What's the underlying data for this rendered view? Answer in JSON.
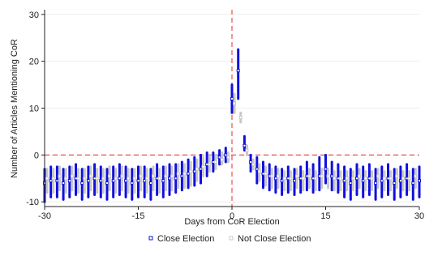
{
  "chart_data": {
    "type": "scatter",
    "xlabel": "Days from CoR Election",
    "ylabel": "Number of Articles Mentioning CoR",
    "xlim": [
      -30,
      30
    ],
    "ylim": [
      -11,
      31
    ],
    "x_ticks": [
      -30,
      -15,
      0,
      15,
      30
    ],
    "x_tick_labels": [
      "-30",
      "-15",
      "0",
      "15",
      "30"
    ],
    "y_ticks": [
      -10,
      0,
      10,
      20,
      30
    ],
    "y_tick_labels": [
      "-10",
      "0",
      "10",
      "20",
      "30"
    ],
    "reference_lines": [
      {
        "axis": "x",
        "value": 0,
        "style": "dashed",
        "color": "#e8504f"
      },
      {
        "axis": "y",
        "value": 0,
        "style": "dashed",
        "color": "#e8504f"
      }
    ],
    "grid": true,
    "legend_position": "bottom",
    "series": [
      {
        "name": "Close Election",
        "color": "#1010e0",
        "marker": "square-outline",
        "x": [
          -30,
          -29,
          -28,
          -27,
          -26,
          -25,
          -24,
          -23,
          -22,
          -21,
          -20,
          -19,
          -18,
          -17,
          -16,
          -15,
          -14,
          -13,
          -12,
          -11,
          -10,
          -9,
          -8,
          -7,
          -6,
          -5,
          -4,
          -3,
          -2,
          -1,
          0,
          1,
          2,
          3,
          4,
          5,
          6,
          7,
          8,
          9,
          10,
          11,
          12,
          13,
          14,
          15,
          16,
          17,
          18,
          19,
          20,
          21,
          22,
          23,
          24,
          25,
          26,
          27,
          28,
          29,
          30
        ],
        "y": [
          -6,
          -5.5,
          -5.5,
          -6,
          -5.5,
          -5,
          -6,
          -5.5,
          -5,
          -5.5,
          -6,
          -5.5,
          -5,
          -5.5,
          -6,
          -5.5,
          -5.5,
          -6,
          -5,
          -5.5,
          -5,
          -5,
          -4.5,
          -4,
          -3.5,
          -3,
          -2,
          -1.5,
          -0.5,
          0,
          12,
          18,
          2,
          -1.5,
          -3,
          -4,
          -4.5,
          -5,
          -5.5,
          -5,
          -5.5,
          -5,
          -4.5,
          -5,
          -4.5,
          -3,
          -4.5,
          -5,
          -5.5,
          -6,
          -5,
          -5.5,
          -5,
          -6,
          -5.5,
          -5,
          -6,
          -5.5,
          -5,
          -6,
          -5.5
        ],
        "low": [
          -10,
          -9,
          -9,
          -9.5,
          -9,
          -8.5,
          -9.5,
          -9,
          -8.5,
          -9,
          -9.5,
          -9,
          -8.5,
          -9,
          -9.5,
          -9,
          -9,
          -9.5,
          -8.5,
          -9,
          -8.5,
          -8,
          -7.5,
          -7,
          -6.5,
          -6,
          -4.5,
          -3.5,
          -2,
          -1.5,
          9,
          12,
          1,
          -3.5,
          -6,
          -7,
          -7.5,
          -8,
          -8.5,
          -8,
          -8.5,
          -8,
          -7.5,
          -8,
          -7.5,
          -6,
          -7.5,
          -8,
          -9,
          -9.5,
          -8.5,
          -9,
          -8.5,
          -9.5,
          -9,
          -8.5,
          -9.5,
          -9,
          -8.5,
          -9.5,
          -9
        ],
        "high": [
          -3,
          -2.5,
          -2.5,
          -3,
          -2.5,
          -2,
          -3,
          -2.5,
          -2,
          -2.5,
          -3,
          -2.5,
          -2,
          -2.5,
          -3,
          -2.5,
          -2.5,
          -3,
          -2,
          -2.5,
          -2,
          -2,
          -1.5,
          -1,
          -0.5,
          0,
          0.5,
          0.5,
          1,
          1.5,
          15,
          22.5,
          4,
          0,
          -0.5,
          -1.5,
          -2,
          -2.5,
          -3,
          -2.5,
          -3,
          -2.5,
          -1.5,
          -2,
          -0.5,
          0,
          -1.5,
          -2,
          -2.5,
          -3,
          -2,
          -2.5,
          -2,
          -3,
          -2.5,
          -2,
          -3,
          -2.5,
          -2,
          -3,
          -2.5
        ]
      },
      {
        "name": "Not Close Election",
        "color": "#c8c8c8",
        "marker": "square-outline",
        "x": [
          -29.6,
          -28.6,
          -27.6,
          -26.6,
          -25.6,
          -24.6,
          -23.6,
          -22.6,
          -21.6,
          -20.6,
          -19.6,
          -18.6,
          -17.6,
          -16.6,
          -15.6,
          -14.6,
          -13.6,
          -12.6,
          -11.6,
          -10.6,
          -9.6,
          -8.6,
          -7.6,
          -6.6,
          -5.6,
          -4.6,
          -3.6,
          -2.6,
          -1.6,
          -0.6,
          0.4,
          1.4,
          2.4,
          3.4,
          4.4,
          5.4,
          6.4,
          7.4,
          8.4,
          9.4,
          10.4,
          11.4,
          12.4,
          13.4,
          14.4,
          15.4,
          16.4,
          17.4,
          18.4,
          19.4,
          20.4,
          21.4,
          22.4,
          23.4,
          24.4,
          25.4,
          26.4,
          27.4,
          28.4,
          29.4
        ],
        "y": [
          -5,
          -5,
          -4.5,
          -5,
          -4.5,
          -5,
          -5,
          -4.5,
          -5,
          -5,
          -4.5,
          -5,
          -4.5,
          -5,
          -5,
          -4.5,
          -5,
          -4.5,
          -5,
          -4.5,
          -4.5,
          -4,
          -4,
          -3.5,
          -3,
          -2.5,
          -2,
          -1.5,
          -1,
          -0.5,
          11,
          8,
          1,
          -2,
          -3.5,
          -4,
          -4.5,
          -4.5,
          -5,
          -5,
          -4.5,
          -5,
          -4.5,
          -5,
          -4.5,
          -4.5,
          -5,
          -5,
          -5,
          -5,
          -4.5,
          -5,
          -5,
          -4.5,
          -5,
          -5,
          -4.5,
          -5,
          -5,
          -4.5
        ],
        "low": [
          -8,
          -8,
          -7.5,
          -8,
          -7.5,
          -8,
          -8,
          -7.5,
          -8,
          -8,
          -7.5,
          -8,
          -7.5,
          -8,
          -8,
          -7.5,
          -8,
          -7.5,
          -8,
          -7.5,
          -7.5,
          -7,
          -7,
          -6.5,
          -5.5,
          -4.5,
          -3.5,
          -3,
          -2,
          -1.5,
          9,
          7,
          0,
          -3,
          -5.5,
          -6.5,
          -7,
          -7,
          -7.5,
          -7.5,
          -7,
          -7.5,
          -7,
          -7.5,
          -7,
          -7,
          -7.5,
          -7.5,
          -7.5,
          -7.5,
          -7,
          -7.5,
          -7.5,
          -7,
          -7.5,
          -7.5,
          -7,
          -7.5,
          -7.5,
          -7
        ],
        "high": [
          -3,
          -3,
          -2.5,
          -3,
          -2.5,
          -3,
          -3,
          -2.5,
          -3,
          -3,
          -2.5,
          -3,
          -2.5,
          -3,
          -3,
          -2.5,
          -3,
          -2.5,
          -3,
          -2.5,
          -2.5,
          -2,
          -2,
          -1.5,
          -1,
          -0.5,
          0,
          0,
          0.5,
          0.5,
          13,
          9,
          2,
          -1,
          -2,
          -2.5,
          -3,
          -3,
          -3.5,
          -3.5,
          -3,
          -3.5,
          -3,
          -3.5,
          -3,
          -3,
          -3.5,
          -3.5,
          -3.5,
          -3.5,
          -3,
          -3.5,
          -3.5,
          -3,
          -3.5,
          -3.5,
          -3,
          -3.5,
          -3.5,
          -3
        ]
      }
    ]
  }
}
